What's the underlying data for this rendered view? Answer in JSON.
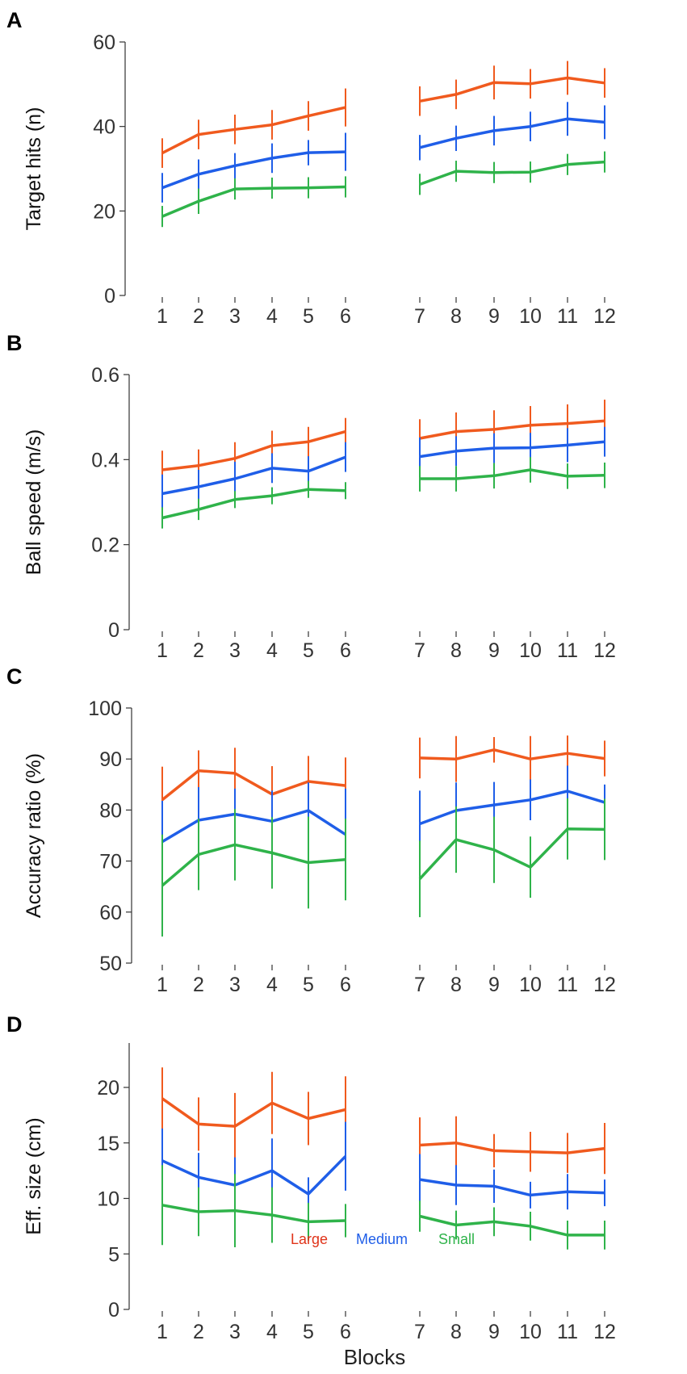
{
  "x_label": "Blocks",
  "colors": {
    "Large": "#f05a1e",
    "Medium": "#1f5ee8",
    "Small": "#2fb34a",
    "axis": "#333333"
  },
  "legend": [
    {
      "name": "Large",
      "color": "#e0341a"
    },
    {
      "name": "Medium",
      "color": "#1f5ee8"
    },
    {
      "name": "Small",
      "color": "#2fb34a"
    }
  ],
  "chart_data": [
    {
      "panel": "A",
      "type": "line",
      "ylabel": "Target hits (n)",
      "ylim": [
        0,
        60
      ],
      "yticks": [
        0,
        20,
        40,
        60
      ],
      "categories": [
        "1",
        "2",
        "3",
        "4",
        "5",
        "6",
        "7",
        "8",
        "9",
        "10",
        "11",
        "12"
      ],
      "series": [
        {
          "name": "Large",
          "values": [
            33.7,
            38.1,
            39.3,
            40.4,
            42.5,
            44.5,
            46.0,
            47.6,
            50.4,
            50.1,
            51.5,
            50.3
          ],
          "errors": [
            3.5,
            3.5,
            3.5,
            3.5,
            3.5,
            4.5,
            3.5,
            3.5,
            4.0,
            3.5,
            4.0,
            3.5
          ]
        },
        {
          "name": "Medium",
          "values": [
            25.5,
            28.7,
            30.7,
            32.5,
            33.8,
            34.0,
            35.0,
            37.2,
            39.0,
            40.0,
            41.8,
            41.0
          ],
          "errors": [
            3.5,
            3.5,
            3.0,
            3.5,
            3.0,
            4.5,
            3.0,
            3.0,
            3.5,
            3.5,
            4.0,
            4.0
          ]
        },
        {
          "name": "Small",
          "values": [
            18.7,
            22.3,
            25.2,
            25.4,
            25.5,
            25.7,
            26.3,
            29.4,
            29.1,
            29.2,
            31.0,
            31.6
          ],
          "errors": [
            2.5,
            3.0,
            2.5,
            2.5,
            2.5,
            2.5,
            2.5,
            2.5,
            2.5,
            2.5,
            2.5,
            2.5
          ]
        }
      ]
    },
    {
      "panel": "B",
      "type": "line",
      "ylabel": "Ball speed (m/s)",
      "ylim": [
        0,
        0.6
      ],
      "yticks": [
        0,
        0.2,
        0.4,
        0.6
      ],
      "categories": [
        "1",
        "2",
        "3",
        "4",
        "5",
        "6",
        "7",
        "8",
        "9",
        "10",
        "11",
        "12"
      ],
      "series": [
        {
          "name": "Large",
          "values": [
            0.376,
            0.386,
            0.403,
            0.433,
            0.442,
            0.466,
            0.45,
            0.466,
            0.471,
            0.481,
            0.485,
            0.491
          ],
          "errors": [
            0.045,
            0.038,
            0.038,
            0.035,
            0.035,
            0.032,
            0.045,
            0.045,
            0.045,
            0.045,
            0.045,
            0.05
          ]
        },
        {
          "name": "Medium",
          "values": [
            0.32,
            0.336,
            0.355,
            0.38,
            0.373,
            0.406,
            0.407,
            0.42,
            0.427,
            0.428,
            0.434,
            0.442
          ],
          "errors": [
            0.045,
            0.04,
            0.04,
            0.035,
            0.035,
            0.035,
            0.045,
            0.035,
            0.035,
            0.035,
            0.04,
            0.035
          ]
        },
        {
          "name": "Small",
          "values": [
            0.263,
            0.283,
            0.306,
            0.315,
            0.33,
            0.327,
            0.355,
            0.355,
            0.362,
            0.376,
            0.361,
            0.363
          ],
          "errors": [
            0.025,
            0.025,
            0.02,
            0.02,
            0.02,
            0.02,
            0.03,
            0.03,
            0.03,
            0.03,
            0.03,
            0.03
          ]
        }
      ]
    },
    {
      "panel": "C",
      "type": "line",
      "ylabel": "Accuracy ratio (%)",
      "ylim": [
        50,
        100
      ],
      "yticks": [
        50,
        60,
        70,
        80,
        90,
        100
      ],
      "categories": [
        "1",
        "2",
        "3",
        "4",
        "5",
        "6",
        "7",
        "8",
        "9",
        "10",
        "11",
        "12"
      ],
      "series": [
        {
          "name": "Large",
          "values": [
            82.0,
            87.7,
            87.2,
            83.1,
            85.6,
            84.8,
            90.2,
            90.0,
            91.8,
            90.0,
            91.1,
            90.1
          ],
          "errors": [
            6.5,
            4.0,
            5.0,
            5.5,
            5.0,
            5.5,
            4.0,
            4.5,
            2.5,
            4.5,
            3.5,
            3.5
          ]
        },
        {
          "name": "Medium",
          "values": [
            73.8,
            78.0,
            79.2,
            77.8,
            79.9,
            75.2,
            77.3,
            79.9,
            81.0,
            82.0,
            83.7,
            81.5
          ],
          "errors": [
            8.0,
            6.5,
            5.0,
            6.0,
            5.5,
            9.0,
            6.5,
            5.5,
            4.5,
            4.0,
            5.0,
            3.5
          ]
        },
        {
          "name": "Small",
          "values": [
            65.2,
            71.3,
            73.2,
            71.6,
            69.7,
            70.3,
            66.5,
            74.2,
            72.2,
            68.8,
            76.3,
            76.2
          ],
          "errors": [
            10.0,
            7.0,
            7.0,
            7.0,
            9.0,
            8.0,
            7.5,
            6.5,
            6.5,
            6.0,
            6.0,
            6.0
          ]
        }
      ]
    },
    {
      "panel": "D",
      "type": "line",
      "ylabel": "Eff. size (cm)",
      "ylim": [
        0,
        24
      ],
      "yticks": [
        0,
        5,
        10,
        15,
        20
      ],
      "categories": [
        "1",
        "2",
        "3",
        "4",
        "5",
        "6",
        "7",
        "8",
        "9",
        "10",
        "11",
        "12"
      ],
      "series": [
        {
          "name": "Large",
          "values": [
            19.0,
            16.7,
            16.5,
            18.6,
            17.2,
            18.0,
            14.8,
            15.0,
            14.3,
            14.2,
            14.1,
            14.5
          ],
          "errors": [
            2.8,
            2.4,
            3.0,
            2.8,
            2.4,
            3.0,
            2.5,
            2.4,
            1.5,
            1.8,
            1.8,
            2.3
          ]
        },
        {
          "name": "Medium",
          "values": [
            13.4,
            11.9,
            11.2,
            12.5,
            10.4,
            13.8,
            11.7,
            11.2,
            11.1,
            10.3,
            10.6,
            10.5
          ],
          "errors": [
            2.9,
            2.2,
            2.5,
            2.9,
            1.5,
            3.1,
            2.3,
            1.8,
            1.5,
            1.2,
            1.6,
            1.2
          ]
        },
        {
          "name": "Small",
          "values": [
            9.4,
            8.8,
            8.9,
            8.5,
            7.9,
            8.0,
            8.4,
            7.6,
            7.9,
            7.5,
            6.7,
            6.7
          ],
          "errors": [
            3.6,
            2.2,
            3.3,
            2.5,
            1.7,
            1.5,
            1.4,
            1.3,
            1.3,
            1.3,
            1.3,
            1.3
          ]
        }
      ]
    }
  ]
}
